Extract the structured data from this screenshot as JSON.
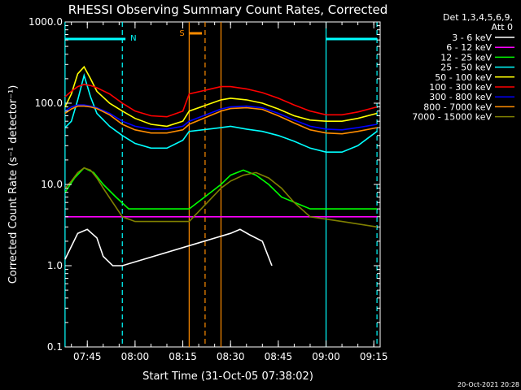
{
  "chart_data": {
    "type": "line",
    "title": "RHESSI Observing Summary Count Rates, Corrected",
    "xlabel": "Start Time (31-Oct-05 07:38:02)",
    "ylabel": "Corrected Count Rate (s⁻¹ detector⁻¹)",
    "yscale": "log",
    "ylim": [
      0.1,
      1000.0
    ],
    "y_ticks": [
      "0.1",
      "1.0",
      "10.0",
      "100.0",
      "1000.0"
    ],
    "x_range": [
      "07:38:02",
      "09:17:00"
    ],
    "x_ticks": [
      "07:45",
      "08:00",
      "08:15",
      "08:30",
      "08:45",
      "09:00",
      "09:15"
    ],
    "grid": false,
    "legend_header": [
      "Det 1,3,4,5,6,9,",
      "Att 0"
    ],
    "legend_position": "right",
    "series": [
      {
        "name": "3 - 6 keV",
        "color": "#ffffff",
        "x": [
          "07:38",
          "07:42",
          "07:45",
          "07:48",
          "07:50",
          "07:53",
          "07:56",
          "08:30",
          "08:33",
          "08:36",
          "08:40",
          "08:43"
        ],
        "y": [
          1.2,
          2.5,
          2.8,
          2.2,
          1.3,
          1.0,
          1.0,
          2.5,
          2.8,
          2.4,
          2.0,
          1.0
        ]
      },
      {
        "name": "6 - 12 keV",
        "color": "#ff00ff",
        "x": [
          "07:38",
          "07:45",
          "07:55",
          "08:05",
          "08:15",
          "08:17",
          "08:27",
          "08:40",
          "08:55",
          "09:10",
          "09:16"
        ],
        "y": [
          4.0,
          4.0,
          4.0,
          4.0,
          4.0,
          4.0,
          4.0,
          4.0,
          4.0,
          4.0,
          4.0
        ]
      },
      {
        "name": "12 - 25 keV",
        "color": "#00ff00",
        "x": [
          "07:38",
          "07:41",
          "07:44",
          "07:47",
          "07:50",
          "07:54",
          "07:58",
          "08:05",
          "08:12",
          "08:17",
          "08:27",
          "08:30",
          "08:34",
          "08:38",
          "08:42",
          "08:46",
          "08:55",
          "09:05",
          "09:16"
        ],
        "y": [
          8,
          12,
          16,
          14,
          10,
          7,
          5,
          5,
          5,
          5,
          10,
          13,
          15,
          13,
          10,
          7,
          5,
          5,
          5
        ]
      },
      {
        "name": "25 - 50 keV",
        "color": "#00ffff",
        "x": [
          "07:38",
          "07:40",
          "07:42",
          "07:44",
          "07:46",
          "07:48",
          "07:52",
          "07:56",
          "08:00",
          "08:05",
          "08:10",
          "08:15",
          "08:17",
          "08:27",
          "08:30",
          "08:35",
          "08:40",
          "08:45",
          "08:50",
          "08:55",
          "09:00",
          "09:05",
          "09:10",
          "09:16"
        ],
        "y": [
          50,
          60,
          110,
          220,
          120,
          75,
          52,
          40,
          32,
          28,
          28,
          35,
          45,
          50,
          52,
          48,
          45,
          40,
          34,
          28,
          25,
          25,
          30,
          45
        ]
      },
      {
        "name": "50 - 100 keV",
        "color": "#ffff00",
        "x": [
          "07:38",
          "07:40",
          "07:42",
          "07:44",
          "07:46",
          "07:48",
          "07:52",
          "07:56",
          "08:00",
          "08:05",
          "08:10",
          "08:15",
          "08:17",
          "08:27",
          "08:30",
          "08:35",
          "08:40",
          "08:45",
          "08:50",
          "08:55",
          "09:00",
          "09:05",
          "09:10",
          "09:16"
        ],
        "y": [
          90,
          130,
          230,
          280,
          200,
          140,
          100,
          80,
          65,
          55,
          52,
          60,
          80,
          110,
          115,
          110,
          100,
          85,
          70,
          62,
          60,
          60,
          65,
          75
        ]
      },
      {
        "name": "100 - 300 keV",
        "color": "#ff0000",
        "x": [
          "07:38",
          "07:40",
          "07:42",
          "07:44",
          "07:46",
          "07:48",
          "07:52",
          "07:56",
          "08:00",
          "08:05",
          "08:10",
          "08:15",
          "08:17",
          "08:27",
          "08:30",
          "08:35",
          "08:40",
          "08:45",
          "08:50",
          "08:55",
          "09:00",
          "09:05",
          "09:10",
          "09:16"
        ],
        "y": [
          120,
          140,
          160,
          170,
          165,
          155,
          130,
          100,
          80,
          70,
          68,
          80,
          130,
          160,
          160,
          150,
          135,
          115,
          95,
          80,
          72,
          72,
          78,
          90
        ]
      },
      {
        "name": "300 - 800 keV",
        "color": "#0000ff",
        "x": [
          "07:38",
          "07:40",
          "07:42",
          "07:44",
          "07:46",
          "07:48",
          "07:52",
          "07:56",
          "08:00",
          "08:05",
          "08:10",
          "08:15",
          "08:17",
          "08:27",
          "08:30",
          "08:35",
          "08:40",
          "08:45",
          "08:50",
          "08:55",
          "09:00",
          "09:05",
          "09:10",
          "09:16"
        ],
        "y": [
          80,
          90,
          95,
          95,
          92,
          88,
          75,
          60,
          52,
          48,
          48,
          52,
          60,
          85,
          90,
          92,
          88,
          75,
          62,
          52,
          48,
          47,
          50,
          55
        ]
      },
      {
        "name": "800 - 7000 keV",
        "color": "#ff8c00",
        "x": [
          "07:38",
          "07:40",
          "07:42",
          "07:44",
          "07:46",
          "07:48",
          "07:52",
          "07:56",
          "08:00",
          "08:05",
          "08:10",
          "08:15",
          "08:17",
          "08:27",
          "08:30",
          "08:35",
          "08:40",
          "08:45",
          "08:50",
          "08:55",
          "09:00",
          "09:05",
          "09:10",
          "09:16"
        ],
        "y": [
          75,
          85,
          92,
          92,
          90,
          86,
          72,
          55,
          47,
          43,
          43,
          47,
          55,
          80,
          86,
          88,
          84,
          70,
          57,
          47,
          43,
          42,
          45,
          50
        ]
      },
      {
        "name": "7000 - 15000 keV",
        "color": "#808000",
        "x": [
          "07:38",
          "07:40",
          "07:42",
          "07:44",
          "07:46",
          "07:48",
          "07:50",
          "07:53",
          "07:56",
          "08:00",
          "08:05",
          "08:12",
          "08:17",
          "08:27",
          "08:30",
          "08:34",
          "08:38",
          "08:42",
          "08:46",
          "08:50",
          "08:55",
          "09:05",
          "09:16"
        ],
        "y": [
          9,
          11,
          14,
          16,
          15,
          12,
          9,
          6,
          4,
          3.5,
          3.5,
          3.5,
          3.5,
          9,
          11,
          13,
          14,
          12,
          9,
          6,
          4,
          3.5,
          3
        ]
      }
    ],
    "annotations": [
      {
        "text": "N",
        "color": "#00ffff",
        "span": [
          "07:38",
          "07:57"
        ]
      },
      {
        "text": "S",
        "color": "#ff8c00",
        "span": [
          "08:17",
          "08:21"
        ]
      },
      {
        "text": "",
        "color": "#00ffff",
        "span": [
          "09:00",
          "09:16"
        ]
      }
    ],
    "vlines": [
      {
        "x": "07:38",
        "color": "#00ffff",
        "style": "solid"
      },
      {
        "x": "07:56",
        "color": "#00ffff",
        "style": "dashed"
      },
      {
        "x": "08:17",
        "color": "#ff8c00",
        "style": "solid"
      },
      {
        "x": "08:22",
        "color": "#ff8c00",
        "style": "dashed"
      },
      {
        "x": "08:27",
        "color": "#ff8c00",
        "style": "solid"
      },
      {
        "x": "09:00",
        "color": "#00ffff",
        "style": "solid"
      },
      {
        "x": "09:16",
        "color": "#00ffff",
        "style": "dashed"
      }
    ]
  },
  "footer": {
    "timestamp": "20-Oct-2021 20:28"
  }
}
